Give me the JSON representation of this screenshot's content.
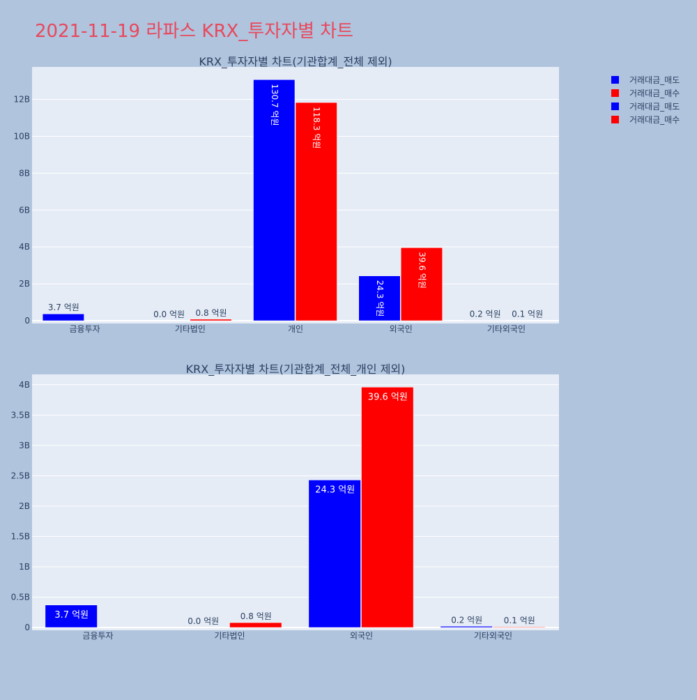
{
  "page": {
    "title": "2021-11-19 라파스 KRX_투자자별 차트"
  },
  "legend": {
    "position": "top-right",
    "items": [
      {
        "label": "거래대금_매도",
        "color": "#0000ff"
      },
      {
        "label": "거래대금_매수",
        "color": "#ff0000"
      },
      {
        "label": "거래대금_매도",
        "color": "#0000ff"
      },
      {
        "label": "거래대금_매수",
        "color": "#ff0000"
      }
    ]
  },
  "chart_data": [
    {
      "type": "bar",
      "title": "KRX_투자자별 차트(기관합계_전체 제외)",
      "categories": [
        "금융투자",
        "기타법인",
        "개인",
        "외국인",
        "기타외국인"
      ],
      "series": [
        {
          "name": "거래대금_매도",
          "color": "#0000ff",
          "values": [
            370000000,
            0,
            13070000000,
            2430000000,
            20000000
          ],
          "labels": [
            "3.7 억원",
            "0.0 억원",
            "130.7 억원",
            "24.3 억원",
            "0.2 억원"
          ]
        },
        {
          "name": "거래대금_매수",
          "color": "#ff0000",
          "values": [
            0,
            80000000,
            11830000000,
            3960000000,
            10000000
          ],
          "labels": [
            "",
            "0.8 억원",
            "118.3 억원",
            "39.6 억원",
            "0.1 억원"
          ]
        }
      ],
      "yticks": [
        0,
        2000000000,
        4000000000,
        6000000000,
        8000000000,
        10000000000,
        12000000000
      ],
      "ytick_labels": [
        "0",
        "2B",
        "4B",
        "6B",
        "8B",
        "10B",
        "12B"
      ],
      "ylim": [
        0,
        13760000000
      ],
      "grid": true
    },
    {
      "type": "bar",
      "title": "KRX_투자자별 차트(기관합계_전체_개인 제외)",
      "categories": [
        "금융투자",
        "기타법인",
        "외국인",
        "기타외국인"
      ],
      "series": [
        {
          "name": "거래대금_매도",
          "color": "#0000ff",
          "values": [
            370000000,
            0,
            2430000000,
            20000000
          ],
          "labels": [
            "3.7 억원",
            "0.0 억원",
            "24.3 억원",
            "0.2 억원"
          ]
        },
        {
          "name": "거래대금_매수",
          "color": "#ff0000",
          "values": [
            0,
            80000000,
            3960000000,
            10000000
          ],
          "labels": [
            "",
            "0.8 억원",
            "39.6 억원",
            "0.1 억원"
          ]
        }
      ],
      "yticks": [
        0,
        500000000,
        1000000000,
        1500000000,
        2000000000,
        2500000000,
        3000000000,
        3500000000,
        4000000000
      ],
      "ytick_labels": [
        "0",
        "0.5B",
        "1B",
        "1.5B",
        "2B",
        "2.5B",
        "3B",
        "3.5B",
        "4B"
      ],
      "ylim": [
        0,
        4170000000
      ],
      "grid": true
    }
  ]
}
